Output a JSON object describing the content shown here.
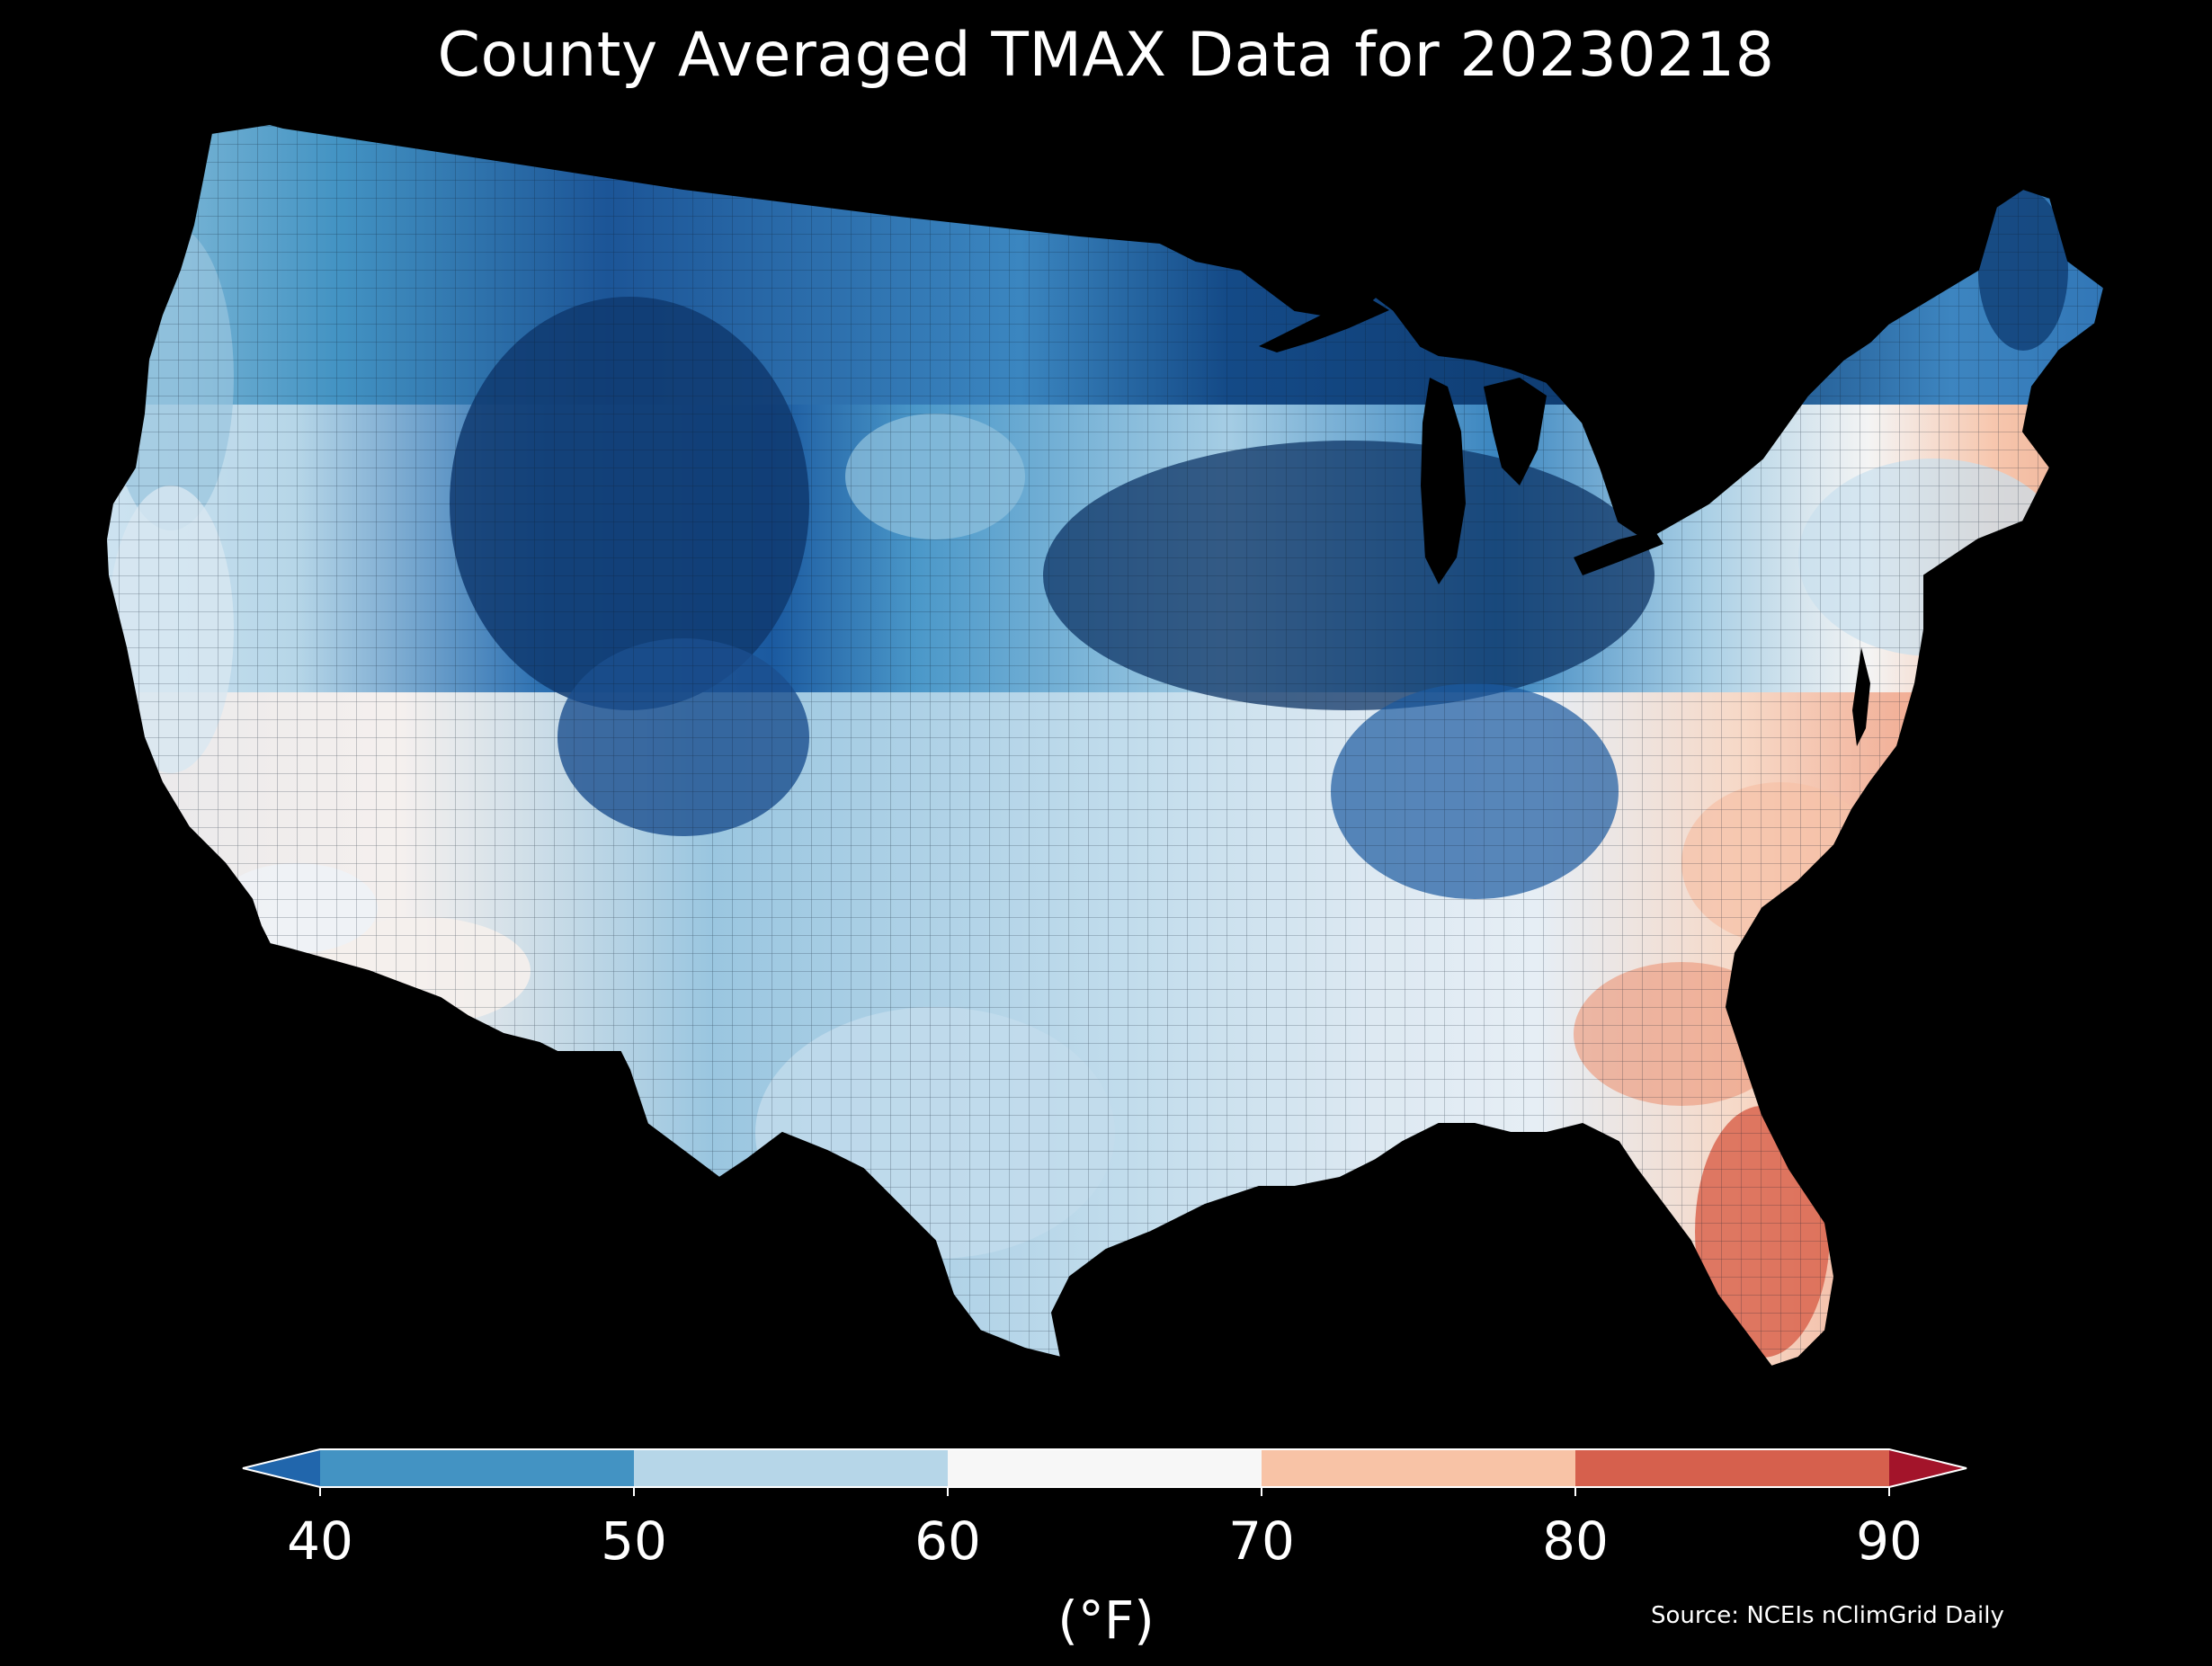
{
  "title": "County Averaged TMAX Data for 20230218",
  "colorbar": {
    "label": "(°F)",
    "ticks": [
      "40",
      "50",
      "60",
      "70",
      "80",
      "90"
    ],
    "bins": [
      {
        "range": "<40",
        "color": "#2166ac"
      },
      {
        "range": "40-50",
        "color": "#4393c3"
      },
      {
        "range": "50-60",
        "color": "#b6d6e8"
      },
      {
        "range": "60-70",
        "color": "#f7f7f7"
      },
      {
        "range": "70-80",
        "color": "#f8c3a6"
      },
      {
        "range": "80-90",
        "color": "#d6604d"
      },
      {
        "range": ">90",
        "color": "#a3142a"
      }
    ]
  },
  "source": "Source: NCEIs nClimGrid Daily",
  "background": "#000000",
  "map": {
    "region": "Contiguous United States",
    "variable": "TMAX",
    "units": "°F",
    "regional_values": [
      {
        "region": "Pacific Northwest coast",
        "bin": "50-60"
      },
      {
        "region": "Northern Rockies / Plains",
        "bin": "<40"
      },
      {
        "region": "Colorado / Wyoming",
        "bin": "<40"
      },
      {
        "region": "Upper Midwest / Great Lakes",
        "bin": "<40"
      },
      {
        "region": "Ohio Valley",
        "bin": "<40"
      },
      {
        "region": "Southwest desert / Southern CA",
        "bin": "60-70"
      },
      {
        "region": "Texas / Southern Plains",
        "bin": "50-60"
      },
      {
        "region": "Northeast",
        "bin": "50-60"
      },
      {
        "region": "Carolinas / Georgia",
        "bin": "70-80"
      },
      {
        "region": "Florida",
        "bin": "80-90"
      }
    ]
  }
}
